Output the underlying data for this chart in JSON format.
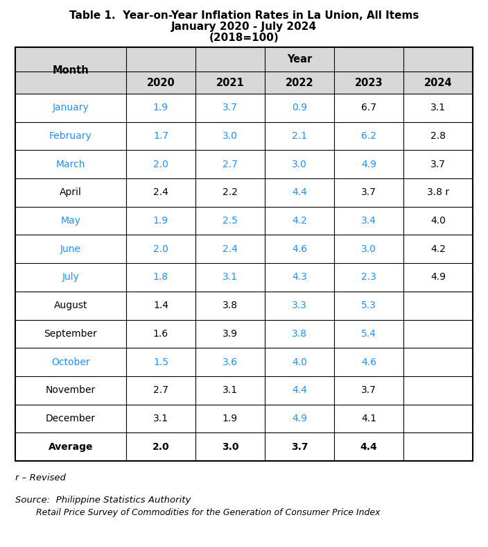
{
  "title_line1": "Table 1.  Year-on-Year Inflation Rates in La Union, All Items",
  "title_line2": "January 2020 - July 2024",
  "title_line3": "(2018=100)",
  "col_header_main": "Year",
  "col_header_month": "Month",
  "years": [
    "2020",
    "2021",
    "2022",
    "2023",
    "2024"
  ],
  "months": [
    "January",
    "February",
    "March",
    "April",
    "May",
    "June",
    "July",
    "August",
    "September",
    "October",
    "November",
    "December",
    "Average"
  ],
  "data": {
    "January": [
      "1.9",
      "3.7",
      "0.9",
      "6.7",
      "3.1"
    ],
    "February": [
      "1.7",
      "3.0",
      "2.1",
      "6.2",
      "2.8"
    ],
    "March": [
      "2.0",
      "2.7",
      "3.0",
      "4.9",
      "3.7"
    ],
    "April": [
      "2.4",
      "2.2",
      "4.4",
      "3.7",
      "3.8 r"
    ],
    "May": [
      "1.9",
      "2.5",
      "4.2",
      "3.4",
      "4.0"
    ],
    "June": [
      "2.0",
      "2.4",
      "4.6",
      "3.0",
      "4.2"
    ],
    "July": [
      "1.8",
      "3.1",
      "4.3",
      "2.3",
      "4.9"
    ],
    "August": [
      "1.4",
      "3.8",
      "3.3",
      "5.3",
      ""
    ],
    "September": [
      "1.6",
      "3.9",
      "3.8",
      "5.4",
      ""
    ],
    "October": [
      "1.5",
      "3.6",
      "4.0",
      "4.6",
      ""
    ],
    "November": [
      "2.7",
      "3.1",
      "4.4",
      "3.7",
      ""
    ],
    "December": [
      "3.1",
      "1.9",
      "4.9",
      "4.1",
      ""
    ],
    "Average": [
      "2.0",
      "3.0",
      "3.7",
      "4.4",
      ""
    ]
  },
  "cyan_month_text": [
    "January",
    "February",
    "March",
    "May",
    "June",
    "July",
    "October"
  ],
  "cyan_data_rows": {
    "January": [
      true,
      true,
      false,
      false,
      false
    ],
    "February": [
      true,
      true,
      false,
      false,
      false
    ],
    "March": [
      true,
      true,
      false,
      false,
      false
    ],
    "April": [
      false,
      false,
      false,
      false,
      false
    ],
    "May": [
      true,
      true,
      false,
      false,
      false
    ],
    "June": [
      true,
      true,
      false,
      false,
      false
    ],
    "July": [
      true,
      true,
      false,
      false,
      false
    ],
    "August": [
      false,
      false,
      false,
      false,
      false
    ],
    "September": [
      false,
      false,
      false,
      false,
      false
    ],
    "October": [
      true,
      true,
      false,
      false,
      false
    ],
    "November": [
      false,
      false,
      false,
      false,
      false
    ],
    "December": [
      false,
      false,
      false,
      false,
      false
    ],
    "Average": [
      false,
      false,
      false,
      false,
      false
    ]
  },
  "cyan_2022_rows": [
    "January",
    "February",
    "March",
    "April",
    "May",
    "June",
    "July",
    "August",
    "September",
    "October",
    "November",
    "December"
  ],
  "cyan_2023_rows": [
    "February",
    "March",
    "May",
    "June",
    "July",
    "August",
    "September",
    "October"
  ],
  "cyan_2024_rows": [],
  "bold_months": [
    "Average"
  ],
  "cyan_color": "#1E90FF",
  "bg_color": "#FFFFFF",
  "header_bg": "#D8D8D8",
  "footnote": "r – Revised",
  "source_line1": "Source:  Philippine Statistics Authority",
  "source_line2": "         Retail Price Survey of Commodities for the Generation of Consumer Price Index",
  "title_fontsize": 11.0,
  "header_fontsize": 10.5,
  "cell_fontsize": 10.0
}
